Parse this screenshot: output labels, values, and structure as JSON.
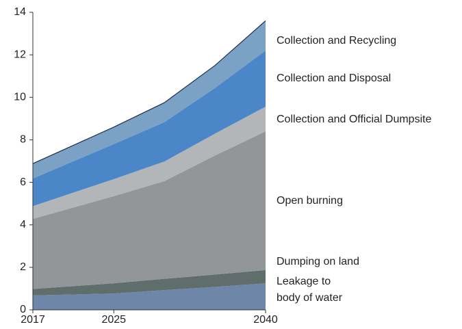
{
  "chart_data": {
    "type": "stacked_area",
    "x": [
      2017,
      2025,
      2030,
      2035,
      2040
    ],
    "xticks": [
      2017,
      2025,
      2040
    ],
    "xlim": [
      2017,
      2040
    ],
    "ylim": [
      0,
      14
    ],
    "yticks": [
      0,
      2,
      4,
      6,
      8,
      10,
      12,
      14
    ],
    "series": [
      {
        "name": "Leakage to body of water",
        "color": "#6e86a8",
        "values": [
          0.68,
          0.77,
          0.93,
          1.08,
          1.25
        ]
      },
      {
        "name": "Dumping on land",
        "color": "#5f6d6b",
        "values": [
          0.3,
          0.48,
          0.53,
          0.58,
          0.62
        ]
      },
      {
        "name": "Open burning",
        "color": "#939699",
        "values": [
          3.3,
          4.1,
          4.6,
          5.6,
          6.53
        ]
      },
      {
        "name": "Collection and Official Dumpsite",
        "color": "#b3b6b9",
        "values": [
          0.6,
          0.8,
          0.92,
          1.03,
          1.16
        ]
      },
      {
        "name": "Collection and Disposal",
        "color": "#4a86c8",
        "values": [
          1.3,
          1.65,
          1.85,
          2.15,
          2.64
        ]
      },
      {
        "name": "Collection and Recycling",
        "color": "#7ba1c4",
        "values": [
          0.7,
          0.8,
          0.92,
          1.06,
          1.4
        ]
      }
    ]
  }
}
